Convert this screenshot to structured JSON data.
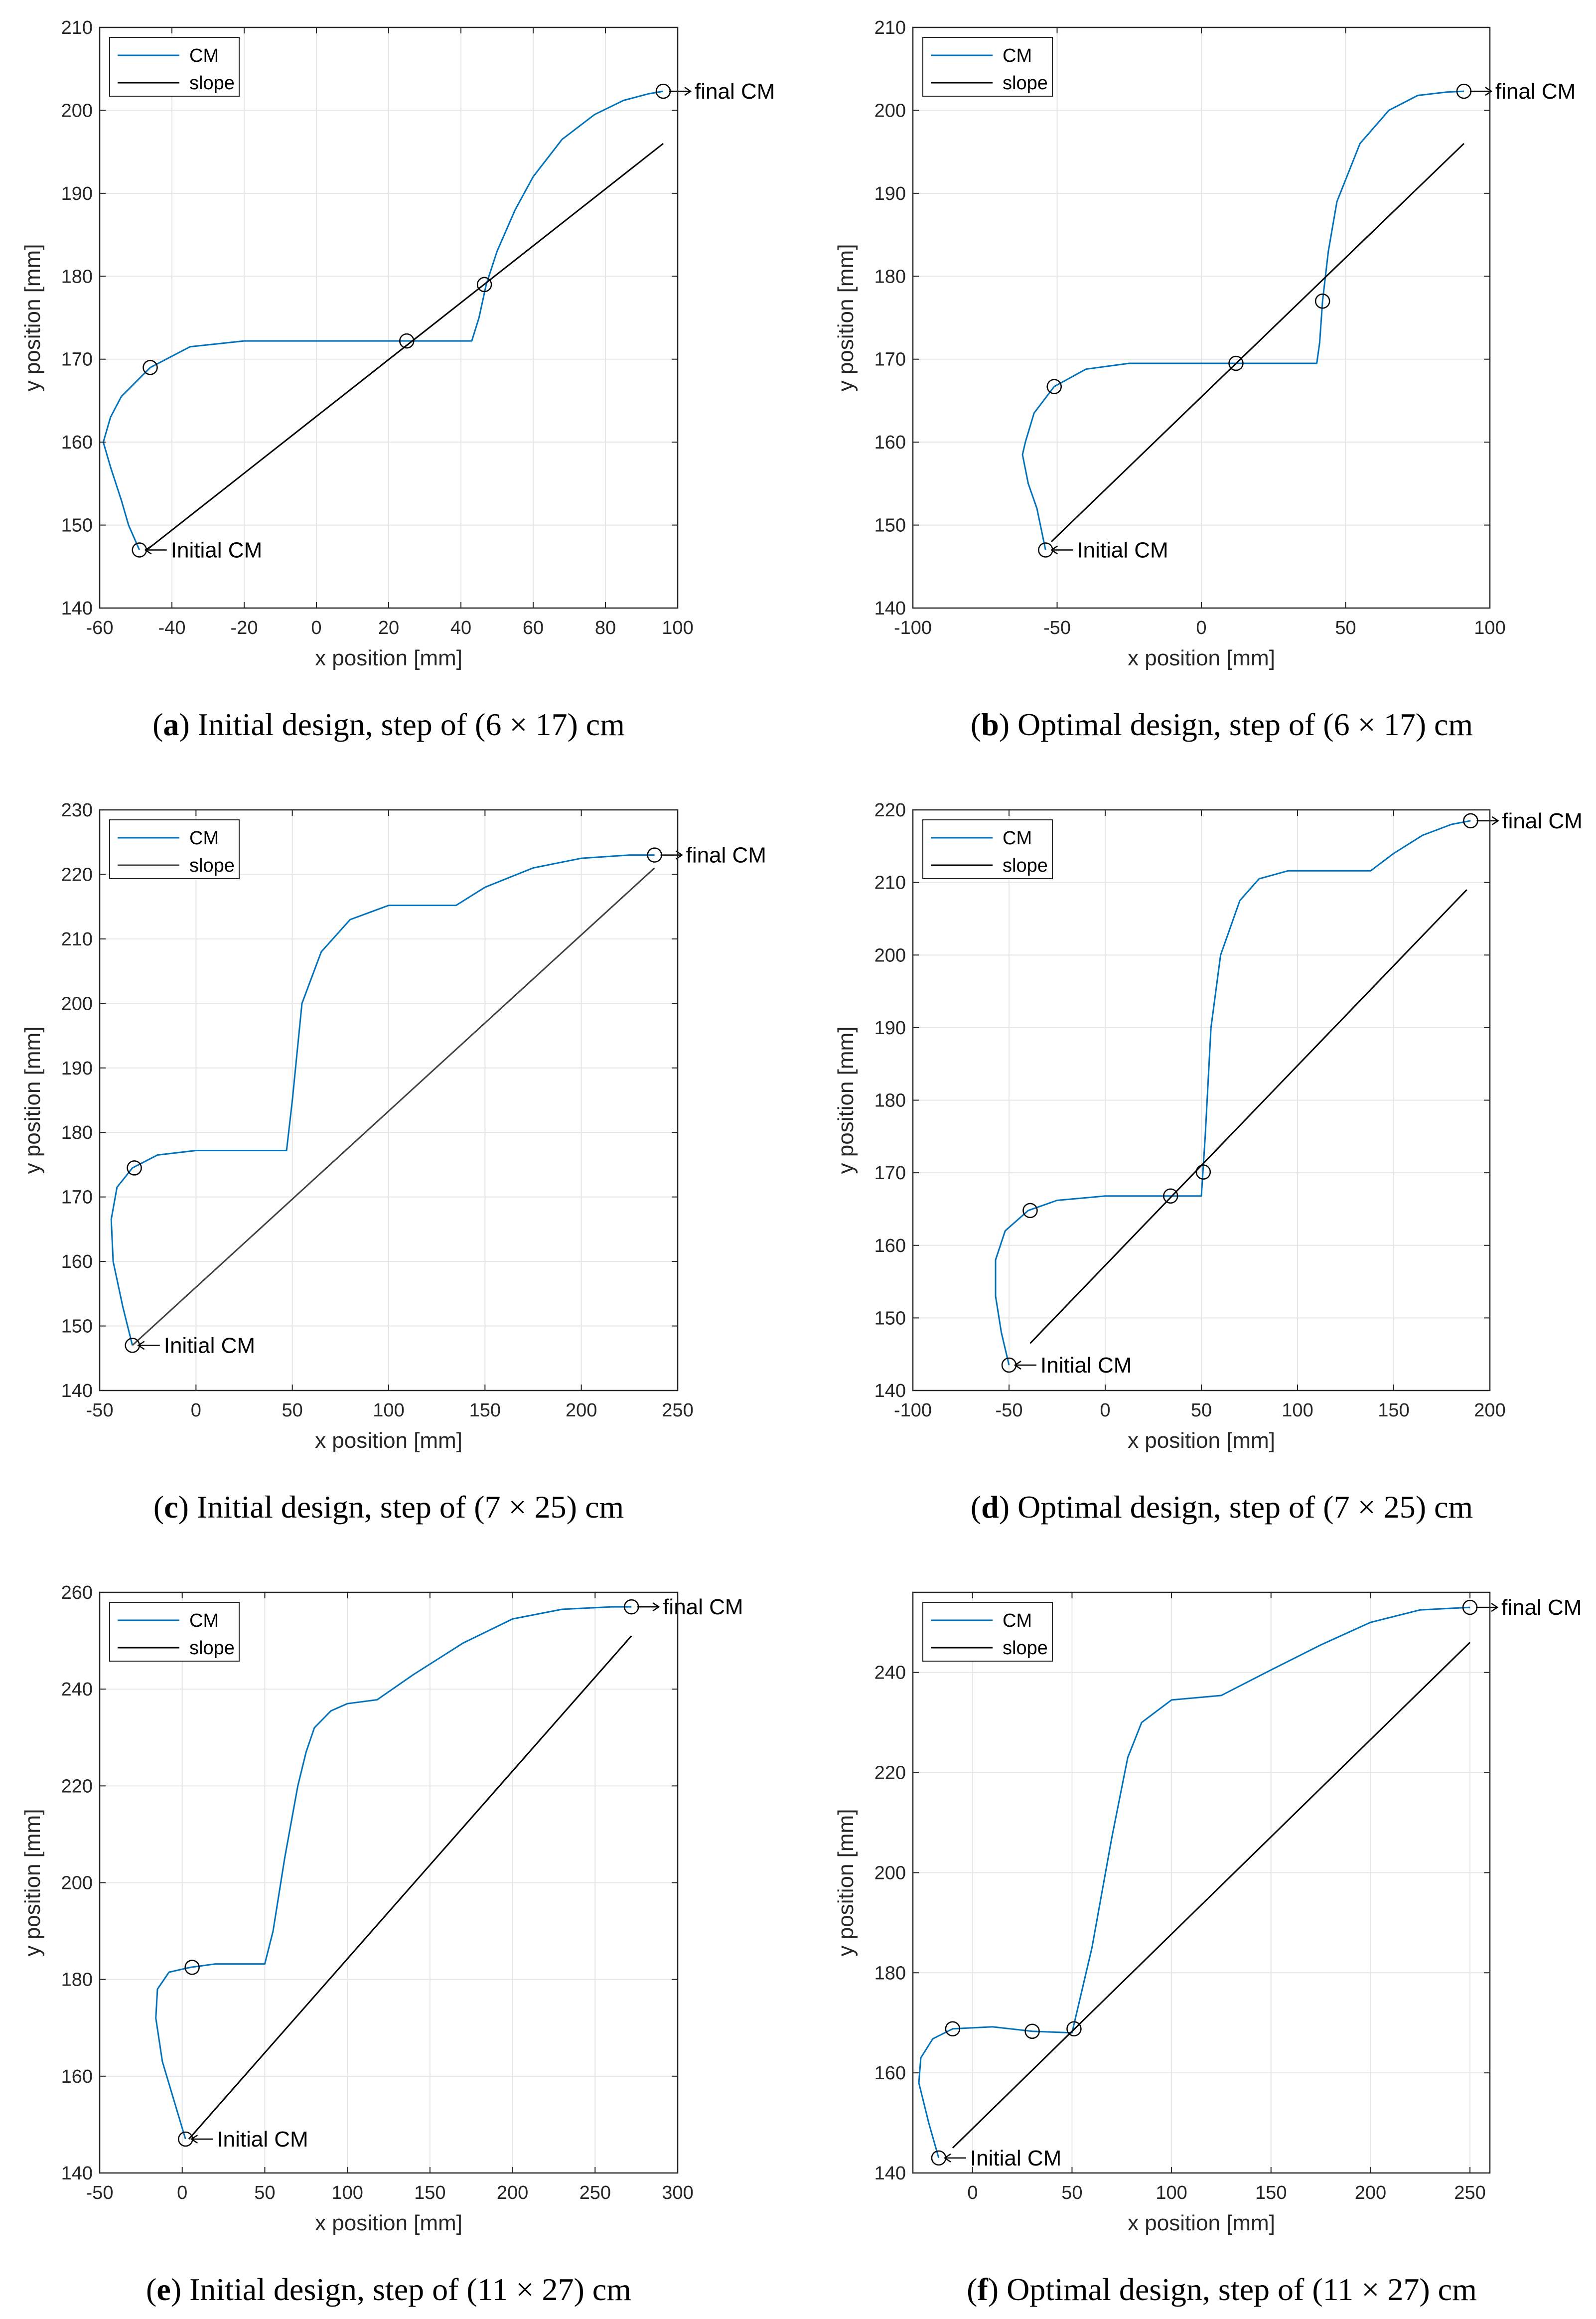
{
  "chart_data": [
    {
      "id": "a",
      "type": "line",
      "caption_label": "a",
      "caption": "Initial design, step of (6 × 17) cm",
      "xlabel": "x position [mm]",
      "ylabel": "y position [mm]",
      "xlim": [
        -60,
        100
      ],
      "ylim": [
        140,
        210
      ],
      "xticks": [
        -60,
        -40,
        -20,
        0,
        20,
        40,
        60,
        80,
        100
      ],
      "yticks": [
        140,
        150,
        160,
        170,
        180,
        190,
        200,
        210
      ],
      "xtick_labels": [
        "-60",
        "-40",
        "-20",
        "0",
        "20",
        "40",
        "60",
        "80",
        "100"
      ],
      "ytick_labels": [
        "140",
        "150",
        "160",
        "170",
        "180",
        "190",
        "200",
        "210"
      ],
      "grid": true,
      "legend_position": "top-left",
      "series": [
        {
          "name": "CM",
          "color": "#0072BD",
          "x": [
            -49,
            -52,
            -54,
            -57,
            -59,
            -57,
            -54,
            -46,
            -35,
            -20,
            25,
            43,
            45,
            47,
            50,
            55,
            60,
            68,
            77,
            85,
            92,
            96
          ],
          "y": [
            147,
            150,
            153,
            157,
            160,
            163,
            165.5,
            169,
            171.5,
            172.2,
            172.2,
            172.2,
            175,
            179,
            183,
            188,
            192,
            196.5,
            199.5,
            201.2,
            202,
            202.3
          ]
        },
        {
          "name": "slope",
          "color": "#000000",
          "x": [
            -47,
            96
          ],
          "y": [
            147,
            196
          ]
        }
      ],
      "markers": {
        "x": [
          -49,
          -46,
          25,
          46.5,
          96
        ],
        "y": [
          147,
          169,
          172.2,
          179,
          202.3
        ]
      },
      "annotations": [
        {
          "text": "Initial CM",
          "x": -49,
          "y": 147,
          "direction": "right"
        },
        {
          "text": "final CM",
          "x": 96,
          "y": 202.3,
          "direction": "right"
        }
      ]
    },
    {
      "id": "b",
      "type": "line",
      "caption_label": "b",
      "caption": "Optimal design, step of (6 × 17) cm",
      "xlabel": "x position [mm]",
      "ylabel": "y position [mm]",
      "xlim": [
        -100,
        100
      ],
      "ylim": [
        140,
        210
      ],
      "xticks": [
        -100,
        -50,
        0,
        50,
        100
      ],
      "yticks": [
        140,
        150,
        160,
        170,
        180,
        190,
        200,
        210
      ],
      "xtick_labels": [
        "-100",
        "-50",
        "0",
        "50",
        "100"
      ],
      "ytick_labels": [
        "140",
        "150",
        "160",
        "170",
        "180",
        "190",
        "200",
        "210"
      ],
      "grid": true,
      "legend_position": "top-left",
      "series": [
        {
          "name": "CM",
          "color": "#0072BD",
          "x": [
            -54,
            -57,
            -60,
            -62,
            -61,
            -58,
            -51,
            -40,
            -25,
            12,
            40,
            41,
            42,
            44,
            47,
            55,
            65,
            75,
            85,
            91
          ],
          "y": [
            147,
            152,
            155,
            158.5,
            160,
            163.5,
            166.7,
            168.8,
            169.5,
            169.5,
            169.5,
            172,
            177,
            183,
            189,
            196,
            200,
            201.8,
            202.2,
            202.3
          ]
        },
        {
          "name": "slope",
          "color": "#000000",
          "x": [
            -52,
            91
          ],
          "y": [
            148,
            196
          ]
        }
      ],
      "markers": {
        "x": [
          -54,
          -51,
          12,
          42,
          91
        ],
        "y": [
          147,
          166.7,
          169.5,
          177,
          202.3
        ]
      },
      "annotations": [
        {
          "text": "Initial CM",
          "x": -54,
          "y": 147,
          "direction": "right"
        },
        {
          "text": "final CM",
          "x": 91,
          "y": 202.3,
          "direction": "right"
        }
      ]
    },
    {
      "id": "c",
      "type": "line",
      "caption_label": "c",
      "caption": "Initial design, step of (7 × 25) cm",
      "xlabel": "x position [mm]",
      "ylabel": "y position [mm]",
      "xlim": [
        -50,
        250
      ],
      "ylim": [
        140,
        230
      ],
      "xticks": [
        -50,
        0,
        50,
        100,
        150,
        200,
        250
      ],
      "yticks": [
        140,
        150,
        160,
        170,
        180,
        190,
        200,
        210,
        220,
        230
      ],
      "xtick_labels": [
        "-50",
        "0",
        "50",
        "100",
        "150",
        "200",
        "250"
      ],
      "ytick_labels": [
        "140",
        "150",
        "160",
        "170",
        "180",
        "190",
        "200",
        "210",
        "220",
        "230"
      ],
      "grid": true,
      "legend_position": "top-left",
      "series": [
        {
          "name": "CM",
          "color": "#0072BD",
          "x": [
            -33,
            -38,
            -43,
            -44,
            -41,
            -33,
            -20,
            0,
            47,
            50,
            55,
            65,
            80,
            100,
            135,
            150,
            175,
            200,
            225,
            238
          ],
          "y": [
            147,
            153,
            160,
            166.5,
            171.5,
            174.5,
            176.5,
            177.2,
            177.2,
            185,
            200,
            208,
            213,
            215.2,
            215.2,
            218,
            221,
            222.5,
            223,
            223
          ]
        },
        {
          "name": "slope",
          "color": "#404040",
          "x": [
            -33,
            238
          ],
          "y": [
            147,
            221
          ]
        }
      ],
      "markers": {
        "x": [
          -33,
          -32,
          238
        ],
        "y": [
          147,
          174.5,
          223
        ]
      },
      "annotations": [
        {
          "text": "Initial CM",
          "x": -33,
          "y": 147,
          "direction": "right"
        },
        {
          "text": "final CM",
          "x": 238,
          "y": 223,
          "direction": "right"
        }
      ]
    },
    {
      "id": "d",
      "type": "line",
      "caption_label": "d",
      "caption": "Optimal design, step of (7 × 25) cm",
      "xlabel": "x position [mm]",
      "ylabel": "y position [mm]",
      "xlim": [
        -100,
        200
      ],
      "ylim": [
        140,
        220
      ],
      "xticks": [
        -100,
        -50,
        0,
        50,
        100,
        150,
        200
      ],
      "yticks": [
        140,
        150,
        160,
        170,
        180,
        190,
        200,
        210,
        220
      ],
      "xtick_labels": [
        "-100",
        "-50",
        "0",
        "50",
        "100",
        "150",
        "200"
      ],
      "ytick_labels": [
        "140",
        "150",
        "160",
        "170",
        "180",
        "190",
        "200",
        "210",
        "220"
      ],
      "grid": true,
      "legend_position": "top-left",
      "series": [
        {
          "name": "CM",
          "color": "#0072BD",
          "x": [
            -50,
            -54,
            -57,
            -57,
            -52,
            -40,
            -25,
            0,
            32,
            50,
            52,
            55,
            60,
            70,
            80,
            95,
            138,
            150,
            165,
            180,
            190
          ],
          "y": [
            143.5,
            148,
            153,
            158,
            162,
            164.8,
            166.2,
            166.8,
            166.8,
            166.8,
            175,
            190,
            200,
            207.5,
            210.5,
            211.6,
            211.6,
            214,
            216.5,
            218,
            218.5
          ]
        },
        {
          "name": "slope",
          "color": "#000000",
          "x": [
            -39,
            188
          ],
          "y": [
            146.5,
            209
          ]
        }
      ],
      "markers": {
        "x": [
          -50,
          -39,
          34,
          51,
          190
        ],
        "y": [
          143.5,
          164.8,
          166.8,
          170.1,
          218.5
        ]
      },
      "annotations": [
        {
          "text": "Initial CM",
          "x": -50,
          "y": 143.5,
          "direction": "right"
        },
        {
          "text": "final CM",
          "x": 190,
          "y": 218.5,
          "direction": "right"
        }
      ]
    },
    {
      "id": "e",
      "type": "line",
      "caption_label": "e",
      "caption": "Initial design, step of (11 × 27) cm",
      "xlabel": "x position [mm]",
      "ylabel": "y position [mm]",
      "xlim": [
        -50,
        300
      ],
      "ylim": [
        140,
        260
      ],
      "xticks": [
        -50,
        0,
        50,
        100,
        150,
        200,
        250,
        300
      ],
      "yticks": [
        140,
        160,
        180,
        200,
        220,
        240,
        260
      ],
      "xtick_labels": [
        "-50",
        "0",
        "50",
        "100",
        "150",
        "200",
        "250",
        "300"
      ],
      "ytick_labels": [
        "140",
        "160",
        "180",
        "200",
        "220",
        "240",
        "260"
      ],
      "grid": true,
      "legend_position": "top-left",
      "series": [
        {
          "name": "CM",
          "color": "#0072BD",
          "x": [
            2,
            -5,
            -12,
            -16,
            -15,
            -8,
            5,
            20,
            50,
            55,
            62,
            70,
            75,
            80,
            90,
            100,
            118,
            140,
            170,
            200,
            230,
            260,
            272
          ],
          "y": [
            147,
            155,
            163,
            172,
            178,
            181.5,
            182.5,
            183.2,
            183.2,
            190,
            205,
            220,
            227,
            232,
            235.5,
            237,
            237.8,
            243,
            249.5,
            254.5,
            256.5,
            257,
            257
          ]
        },
        {
          "name": "slope",
          "color": "#000000",
          "x": [
            4,
            272
          ],
          "y": [
            147,
            251
          ]
        }
      ],
      "markers": {
        "x": [
          2,
          6,
          272
        ],
        "y": [
          147,
          182.5,
          257
        ]
      },
      "annotations": [
        {
          "text": "Initial CM",
          "x": 2,
          "y": 147,
          "direction": "right"
        },
        {
          "text": "final CM",
          "x": 272,
          "y": 257,
          "direction": "right"
        }
      ]
    },
    {
      "id": "f",
      "type": "line",
      "caption_label": "f",
      "caption": "Optimal design, step of (11 × 27) cm",
      "xlabel": "x position [mm]",
      "ylabel": "y position [mm]",
      "xlim": [
        -30,
        260
      ],
      "ylim": [
        140,
        256
      ],
      "xticks": [
        0,
        50,
        100,
        150,
        200,
        250
      ],
      "yticks": [
        140,
        160,
        180,
        200,
        220,
        240
      ],
      "xtick_labels": [
        "0",
        "50",
        "100",
        "150",
        "200",
        "250"
      ],
      "ytick_labels": [
        "140",
        "160",
        "180",
        "200",
        "220",
        "240"
      ],
      "grid": true,
      "legend_position": "top-left",
      "series": [
        {
          "name": "CM",
          "color": "#0072BD",
          "x": [
            -17,
            -22,
            -27,
            -26,
            -20,
            -10,
            10,
            30,
            50,
            60,
            70,
            78,
            85,
            100,
            125,
            150,
            175,
            200,
            225,
            250
          ],
          "y": [
            143,
            150,
            158,
            163,
            166.8,
            168.8,
            169.2,
            168.3,
            168,
            185,
            207,
            223,
            230,
            234.5,
            235.4,
            240.5,
            245.5,
            250,
            252.5,
            253
          ]
        },
        {
          "name": "slope",
          "color": "#000000",
          "x": [
            -10,
            250
          ],
          "y": [
            145,
            246
          ]
        }
      ],
      "markers": {
        "x": [
          -17,
          -10,
          30,
          51,
          250
        ],
        "y": [
          143,
          168.8,
          168.3,
          168.8,
          253
        ]
      },
      "annotations": [
        {
          "text": "Initial CM",
          "x": -17,
          "y": 143,
          "direction": "right"
        },
        {
          "text": "final CM",
          "x": 250,
          "y": 253,
          "direction": "right"
        }
      ]
    }
  ]
}
